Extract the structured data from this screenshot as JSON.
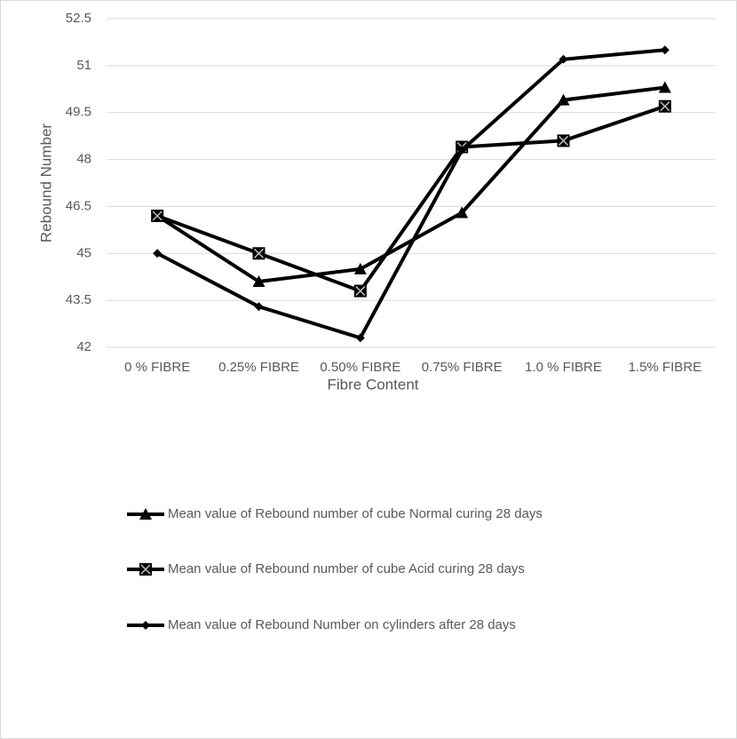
{
  "chart_data": {
    "type": "line",
    "x_label": "Fibre Content",
    "y_label": "Rebound Number",
    "categories": [
      "0 % FIBRE",
      "0.25% FIBRE",
      "0.50% FIBRE",
      "0.75% FIBRE",
      "1.0 % FIBRE",
      "1.5% FIBRE"
    ],
    "series": [
      {
        "name": "Mean value of Rebound number of cube Normal curing 28 days",
        "color": "#000000",
        "marker": "triangle",
        "values": [
          46.2,
          44.1,
          44.5,
          46.3,
          49.9,
          50.3
        ]
      },
      {
        "name": "Mean value of Rebound number of cube Acid curing 28 days",
        "color": "#000000",
        "marker": "square-x",
        "values": [
          46.2,
          45.0,
          43.8,
          48.4,
          48.6,
          49.7
        ]
      },
      {
        "name": "Mean value of Rebound Number on cylinders after 28 days",
        "color": "#000000",
        "marker": "diamond",
        "values": [
          45.0,
          43.3,
          42.3,
          48.3,
          51.2,
          51.5
        ]
      }
    ],
    "ylim": [
      42,
      52.5
    ],
    "yticks": [
      42,
      43.5,
      45,
      46.5,
      48,
      49.5,
      51,
      52.5
    ],
    "grid": true,
    "legend": "bottom"
  }
}
